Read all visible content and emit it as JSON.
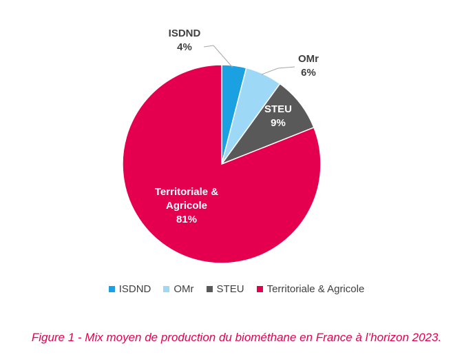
{
  "chart_data": {
    "type": "pie",
    "categories": [
      "ISDND",
      "OMr",
      "STEU",
      "Territoriale & Agricole"
    ],
    "values": [
      4,
      6,
      9,
      81
    ],
    "value_labels": [
      "4%",
      "6%",
      "9%",
      "81%"
    ],
    "slice_labels": [
      [
        "ISDND"
      ],
      [
        "OMr"
      ],
      [
        "STEU"
      ],
      [
        "Territoriale &",
        "Agricole"
      ]
    ],
    "colors": [
      "#1ba1e2",
      "#9dd9f7",
      "#595959",
      "#e5004f"
    ],
    "label_colors": [
      "#404040",
      "#404040",
      "#ffffff",
      "#ffffff"
    ],
    "legend_position": "bottom"
  },
  "caption": "Figure 1 - Mix moyen de production du biométhane en France à l’horizon 2023."
}
